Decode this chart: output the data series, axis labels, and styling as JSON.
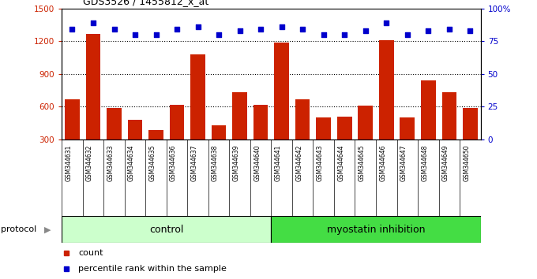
{
  "title": "GDS3526 / 1455812_x_at",
  "samples": [
    "GSM344631",
    "GSM344632",
    "GSM344633",
    "GSM344634",
    "GSM344635",
    "GSM344636",
    "GSM344637",
    "GSM344638",
    "GSM344639",
    "GSM344640",
    "GSM344641",
    "GSM344642",
    "GSM344643",
    "GSM344644",
    "GSM344645",
    "GSM344646",
    "GSM344647",
    "GSM344648",
    "GSM344649",
    "GSM344650"
  ],
  "counts": [
    670,
    1270,
    590,
    480,
    390,
    620,
    1080,
    430,
    730,
    620,
    1190,
    670,
    500,
    510,
    610,
    1210,
    500,
    840,
    730,
    590
  ],
  "percentile_ranks": [
    84,
    89,
    84,
    80,
    80,
    84,
    86,
    80,
    83,
    84,
    86,
    84,
    80,
    80,
    83,
    89,
    80,
    83,
    84,
    83
  ],
  "bar_color": "#cc2200",
  "dot_color": "#0000cc",
  "control_color": "#ccffcc",
  "myostatin_color": "#44dd44",
  "label_bg_color": "#cccccc",
  "left_ylim": [
    300,
    1500
  ],
  "left_yticks": [
    300,
    600,
    900,
    1200,
    1500
  ],
  "right_ylim": [
    0,
    100
  ],
  "right_yticks": [
    0,
    25,
    50,
    75,
    100
  ],
  "grid_lines": [
    600,
    900,
    1200
  ],
  "n_control": 10,
  "legend_count_label": "count",
  "legend_pct_label": "percentile rank within the sample",
  "protocol_label": "protocol",
  "control_label": "control",
  "myostatin_label": "myostatin inhibition"
}
